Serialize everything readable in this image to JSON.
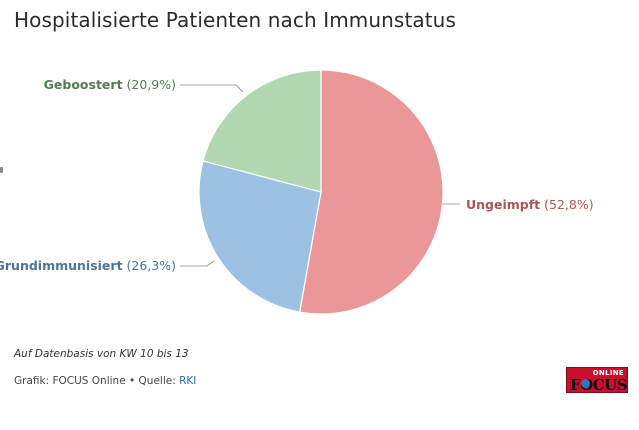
{
  "title": "Hospitalisierte Patienten nach Immunstatus",
  "chart_data": {
    "type": "pie",
    "title": "Hospitalisierte Patienten nach Immunstatus",
    "slices": [
      {
        "name": "Ungeimpft",
        "value": 52.8,
        "label": "(52,8%)",
        "color": "#eb9797",
        "text_color": "#a85656"
      },
      {
        "name": "Grundimmunisiert",
        "value": 26.3,
        "label": "(26,3%)",
        "color": "#9cc1e2",
        "text_color": "#4f7594"
      },
      {
        "name": "Geboostert",
        "value": 20.9,
        "label": "(20,9%)",
        "color": "#b2d8b2",
        "text_color": "#4f7e4f"
      }
    ],
    "start": "top",
    "direction": "clockwise"
  },
  "note": "Auf Datenbasis von KW 10 bis 13",
  "source": {
    "prefix": "Grafik: FOCUS Online • Quelle: ",
    "link": "RKI"
  },
  "logo": {
    "top": "ONLINE",
    "main": "FOCUS"
  }
}
